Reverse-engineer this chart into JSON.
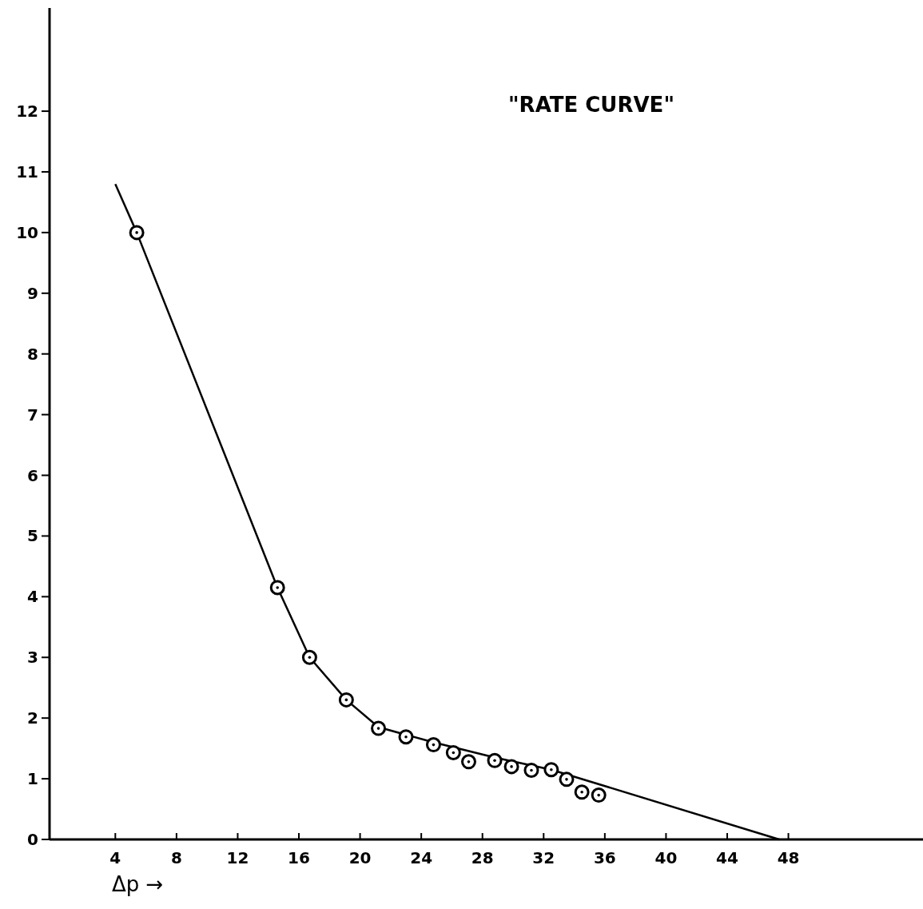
{
  "chart_data": {
    "type": "scatter",
    "title": "\"RATE CURVE\"",
    "xlabel": "Δp →",
    "xlim": [
      -0.3,
      56.8
    ],
    "ylim": [
      0,
      13.7
    ],
    "xticks": [
      4,
      8,
      12,
      16,
      20,
      24,
      28,
      32,
      36,
      40,
      44,
      48
    ],
    "yticks": [
      0,
      1,
      2,
      3,
      4,
      5,
      6,
      7,
      8,
      9,
      10,
      11,
      12
    ],
    "series": [
      {
        "type": "line",
        "color": "#000000",
        "marker": "none",
        "x": [
          4,
          5.4,
          14.6,
          16.7,
          19.1,
          21.2,
          24.8,
          28.8,
          32.5,
          47.4
        ],
        "values": [
          10.8,
          10.0,
          4.15,
          3.0,
          2.3,
          1.85,
          1.6,
          1.35,
          1.15,
          0
        ]
      },
      {
        "color": "#000000",
        "marker": "circle",
        "x": [
          5.4,
          14.6,
          16.7,
          19.1,
          21.2,
          23.0,
          24.8,
          26.1,
          27.1,
          28.8,
          29.9,
          31.2,
          32.5,
          33.5,
          34.5,
          35.6
        ],
        "values": [
          10.0,
          4.15,
          3.0,
          2.3,
          1.83,
          1.69,
          1.56,
          1.43,
          1.28,
          1.3,
          1.2,
          1.14,
          1.15,
          0.99,
          0.78,
          0.73
        ]
      }
    ]
  }
}
